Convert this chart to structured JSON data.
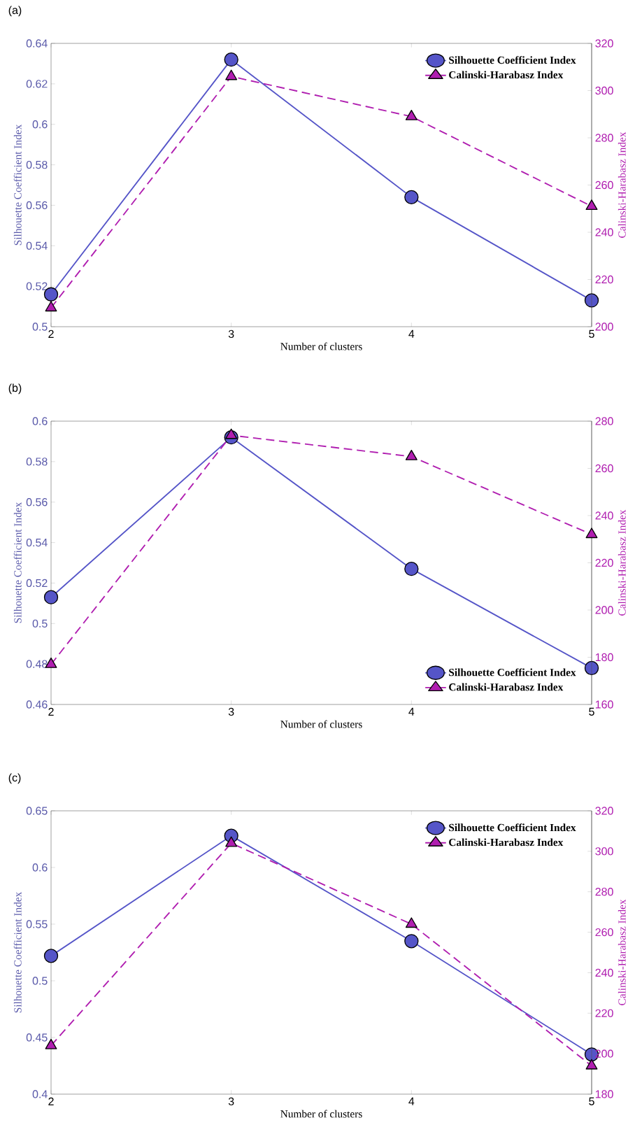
{
  "chart_data": [
    {
      "type": "line",
      "title": "(a)",
      "xlabel": "Number of clusters",
      "ylabel": "Silhouette Coefficient Index",
      "y2label": "Calinski-Harabasz Index",
      "x": [
        2,
        3,
        4,
        5
      ],
      "xlim": [
        2,
        5
      ],
      "xticks": [
        2,
        3,
        4,
        5
      ],
      "ylim": [
        0.5,
        0.64
      ],
      "yticks": [
        0.5,
        0.52,
        0.54,
        0.56,
        0.58,
        0.6,
        0.62,
        0.64
      ],
      "y2lim": [
        200,
        320
      ],
      "y2ticks": [
        200,
        220,
        240,
        260,
        280,
        300,
        320
      ],
      "legend": "top right",
      "series": [
        {
          "name": "Silhouette Coefficient Index",
          "color": "#5555c8",
          "marker": "circle",
          "line_style": "solid",
          "values": [
            0.516,
            0.632,
            0.564,
            0.513
          ]
        },
        {
          "name": "Calinski-Harabasz Index",
          "color": "#b01eb0",
          "marker": "triangle",
          "line_style": "dashed",
          "axis": "y2",
          "values": [
            208,
            306,
            289,
            251
          ]
        }
      ]
    },
    {
      "type": "line",
      "title": "(b)",
      "xlabel": "Number of clusters",
      "ylabel": "Silhouette Coefficient Index",
      "y2label": "Calinski-Harabasz Index",
      "x": [
        2,
        3,
        4,
        5
      ],
      "xlim": [
        2,
        5
      ],
      "xticks": [
        2,
        3,
        4,
        5
      ],
      "ylim": [
        0.46,
        0.6
      ],
      "yticks": [
        0.46,
        0.48,
        0.5,
        0.52,
        0.54,
        0.56,
        0.58,
        0.6
      ],
      "y2lim": [
        160,
        280
      ],
      "y2ticks": [
        160,
        180,
        200,
        220,
        240,
        260,
        280
      ],
      "legend": "bottom right",
      "series": [
        {
          "name": "Silhouette Coefficient Index",
          "color": "#5555c8",
          "marker": "circle",
          "line_style": "solid",
          "values": [
            0.513,
            0.592,
            0.527,
            0.478
          ]
        },
        {
          "name": "Calinski-Harabasz Index",
          "color": "#b01eb0",
          "marker": "triangle",
          "line_style": "dashed",
          "axis": "y2",
          "values": [
            177,
            274,
            265,
            232
          ]
        }
      ]
    },
    {
      "type": "line",
      "title": "(c)",
      "xlabel": "Number of clusters",
      "ylabel": "Silhouette Coefficient Index",
      "y2label": "Calinski-Harabasz Index",
      "x": [
        2,
        3,
        4,
        5
      ],
      "xlim": [
        2,
        5
      ],
      "xticks": [
        2,
        3,
        4,
        5
      ],
      "ylim": [
        0.4,
        0.65
      ],
      "yticks": [
        0.4,
        0.45,
        0.5,
        0.55,
        0.6,
        0.65
      ],
      "y2lim": [
        180,
        320
      ],
      "y2ticks": [
        180,
        200,
        220,
        240,
        260,
        280,
        300,
        320
      ],
      "legend": "top right",
      "series": [
        {
          "name": "Silhouette Coefficient Index",
          "color": "#5555c8",
          "marker": "circle",
          "line_style": "solid",
          "values": [
            0.522,
            0.628,
            0.535,
            0.435
          ]
        },
        {
          "name": "Calinski-Harabasz Index",
          "color": "#b01eb0",
          "marker": "triangle",
          "line_style": "dashed",
          "axis": "y2",
          "values": [
            204,
            304,
            264,
            194
          ]
        }
      ]
    }
  ]
}
